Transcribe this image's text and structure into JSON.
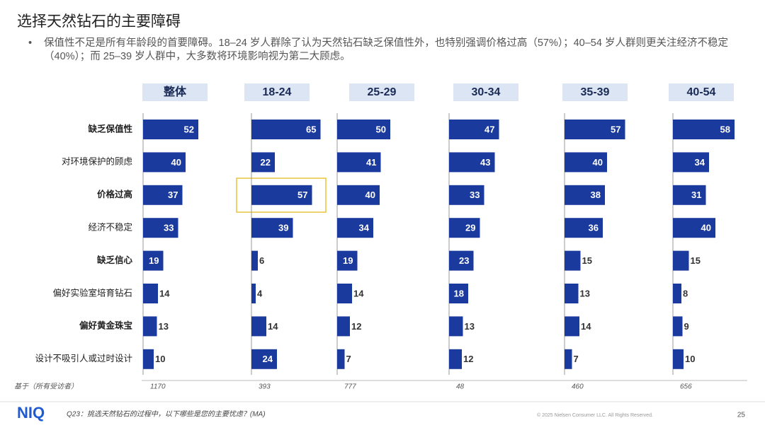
{
  "header": {
    "title": "选择天然钻石的主要障碍",
    "bullet": "保值性不足是所有年龄段的首要障碍。18–24 岁人群除了认为天然钻石缺乏保值性外，也特别强调价格过高（57%）；40–54 岁人群则更关注经济不稳定（40%）；而 25–39 岁人群中，大多数将环境影响视为第二大顾虑。"
  },
  "categories": [
    "缺乏保值性",
    "对环境保护的顾虑",
    "价格过高",
    "经济不稳定",
    "缺乏信心",
    "偏好实验室培育钻石",
    "偏好黄金珠宝",
    "设计不吸引人或过时设计"
  ],
  "chart_data": [
    {
      "type": "bar",
      "title": "整体",
      "values": [
        52,
        40,
        37,
        33,
        19,
        14,
        13,
        10
      ],
      "color": "#1b3a9e",
      "base": 1170
    },
    {
      "type": "bar",
      "title": "18-24",
      "values": [
        65,
        22,
        57,
        39,
        6,
        4,
        14,
        24
      ],
      "color": "#1b3a9e",
      "base": 393
    },
    {
      "type": "bar",
      "title": "25-29",
      "values": [
        50,
        41,
        40,
        34,
        19,
        14,
        12,
        7
      ],
      "color": "#1b3a9e",
      "base": 777
    },
    {
      "type": "bar",
      "title": "30-34",
      "values": [
        47,
        43,
        33,
        29,
        23,
        18,
        13,
        12
      ],
      "color": "#1b3a9e",
      "base": 48
    },
    {
      "type": "bar",
      "title": "35-39",
      "values": [
        57,
        40,
        38,
        36,
        15,
        13,
        14,
        7
      ],
      "color": "#1b3a9e",
      "base": 460
    },
    {
      "type": "bar",
      "title": "40-54",
      "values": [
        58,
        34,
        31,
        40,
        15,
        8,
        9,
        10
      ],
      "color": "#1b3a9e",
      "base": 656
    }
  ],
  "footer": {
    "base_label": "基于（所有受访者）",
    "logo": "NIQ",
    "question": "Q23：挑选天然钻石的过程中，以下哪些是您的主要忧虑？(MA)",
    "copyright": "© 2025 Nielsen Consumer LLC. All Rights Reserved.",
    "page": "25"
  }
}
